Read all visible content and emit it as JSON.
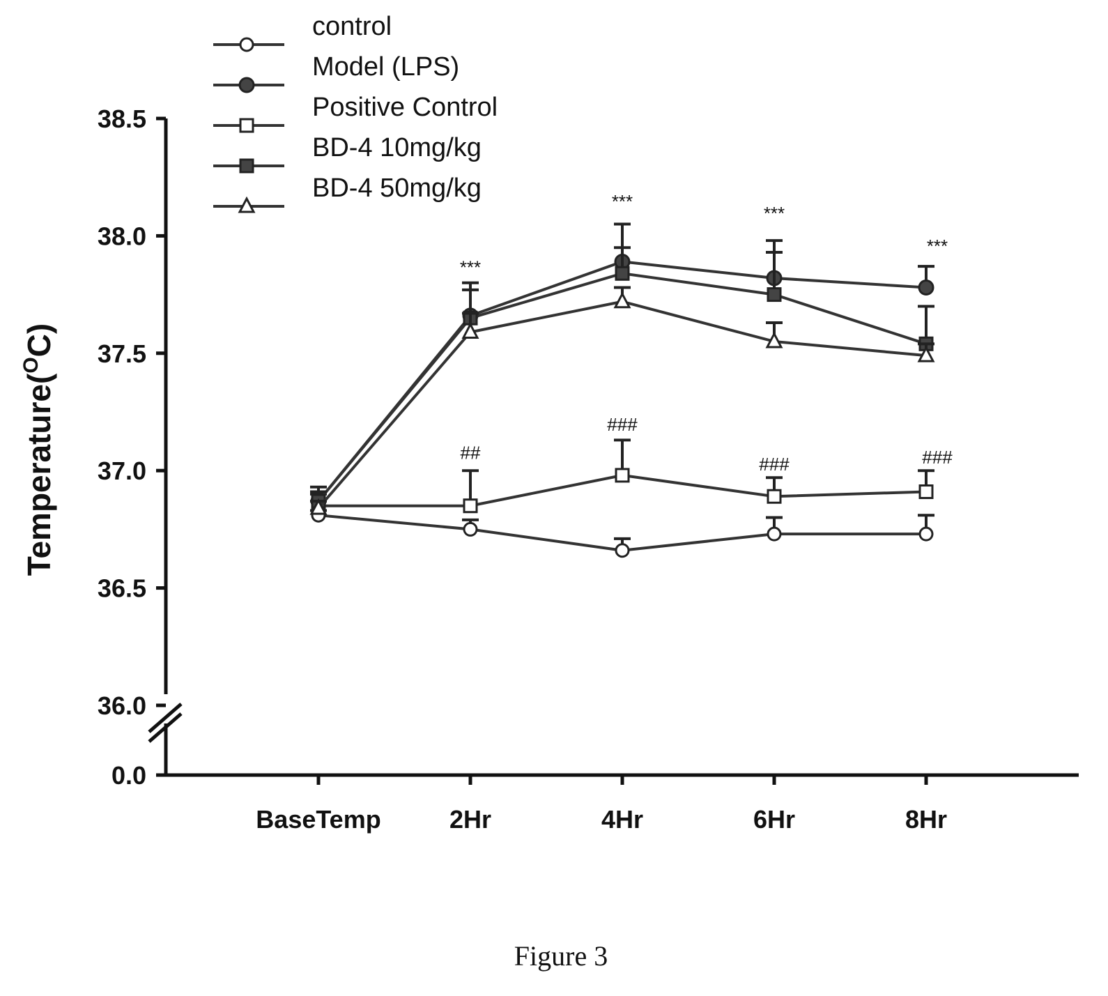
{
  "chart_data": {
    "type": "line",
    "ylabel": "Temperature(°C)",
    "ylabel_main": "Temperature(",
    "ylabel_sup": "O",
    "ylabel_tail": "C)",
    "categories": [
      "BaseTemp",
      "2Hr",
      "4Hr",
      "6Hr",
      "8Hr"
    ],
    "y_ticks": [
      "0.0",
      "36.0",
      "36.5",
      "37.0",
      "37.5",
      "38.0",
      "38.5"
    ],
    "ylim": [
      36.0,
      38.5
    ],
    "y_axis_break": true,
    "grid": false,
    "legend_placement": "top-left",
    "series": [
      {
        "name": "control",
        "marker": "circle-open",
        "values": [
          36.81,
          36.75,
          36.66,
          36.73,
          36.73
        ],
        "err": [
          0.02,
          0.04,
          0.05,
          0.07,
          0.08
        ]
      },
      {
        "name": "Model (LPS)",
        "marker": "circle-filled",
        "values": [
          36.87,
          37.66,
          37.89,
          37.82,
          37.78
        ],
        "err": [
          0.06,
          0.14,
          0.16,
          0.16,
          0.09
        ]
      },
      {
        "name": "Positive Control",
        "marker": "square-open",
        "values": [
          36.85,
          36.85,
          36.98,
          36.89,
          36.91
        ],
        "err": [
          0.05,
          0.15,
          0.15,
          0.08,
          0.09
        ]
      },
      {
        "name": "BD-4 10mg/kg",
        "marker": "square-filled",
        "values": [
          36.87,
          37.65,
          37.84,
          37.75,
          37.54
        ],
        "err": [
          0.04,
          0.12,
          0.11,
          0.18,
          0.16
        ]
      },
      {
        "name": "BD-4 50mg/kg",
        "marker": "triangle-open",
        "values": [
          36.84,
          37.59,
          37.72,
          37.55,
          37.49
        ],
        "err": [
          0.03,
          0.08,
          0.06,
          0.08,
          0.05
        ]
      }
    ],
    "annotations": [
      {
        "category": "2Hr",
        "text": "***",
        "y": 37.84
      },
      {
        "category": "4Hr",
        "text": "***",
        "y": 38.12
      },
      {
        "category": "6Hr",
        "text": "***",
        "y": 38.07
      },
      {
        "category": "8Hr",
        "text": "***",
        "y": 37.93
      },
      {
        "category": "2Hr",
        "text": "##",
        "y": 37.05
      },
      {
        "category": "4Hr",
        "text": "###",
        "y": 37.17
      },
      {
        "category": "6Hr",
        "text": "###",
        "y": 37.0
      },
      {
        "category": "8Hr",
        "text": "###",
        "y": 37.03
      }
    ]
  },
  "caption": "Figure 3"
}
